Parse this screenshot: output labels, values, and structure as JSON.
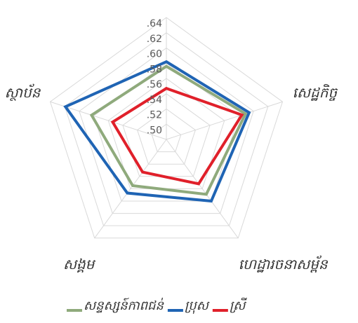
{
  "chart_data": {
    "type": "radar",
    "categories": [
      null,
      "សេដ្ឋកិច្ច",
      "ហេដ្ឋារចនាសម្ព័ន",
      "សង្គម",
      "ស្ថាប័ន"
    ],
    "series": [
      {
        "name": "សន្ទស្សន៍កាពជន់",
        "color": "#8faa7c",
        "values": [
          0.576,
          0.589,
          0.569,
          0.555,
          0.583
        ]
      },
      {
        "name": "ប្រុស",
        "color": "#1f64b4",
        "values": [
          0.582,
          0.594,
          0.58,
          0.567,
          0.619
        ]
      },
      {
        "name": "ស្រី",
        "color": "#e0202a",
        "values": [
          0.547,
          0.584,
          0.552,
          0.533,
          0.554
        ]
      }
    ],
    "rlim": [
      0.48,
      0.64
    ],
    "rticks": [
      {
        "value": 0.5,
        "label": ".50"
      },
      {
        "value": 0.52,
        "label": ".52"
      },
      {
        "value": 0.54,
        "label": ".54"
      },
      {
        "value": 0.56,
        "label": ".56"
      },
      {
        "value": 0.58,
        "label": ".58"
      },
      {
        "value": 0.6,
        "label": ".60"
      },
      {
        "value": 0.62,
        "label": ".62"
      },
      {
        "value": 0.64,
        "label": ".64"
      }
    ],
    "grid": true,
    "legend": "bottom"
  }
}
